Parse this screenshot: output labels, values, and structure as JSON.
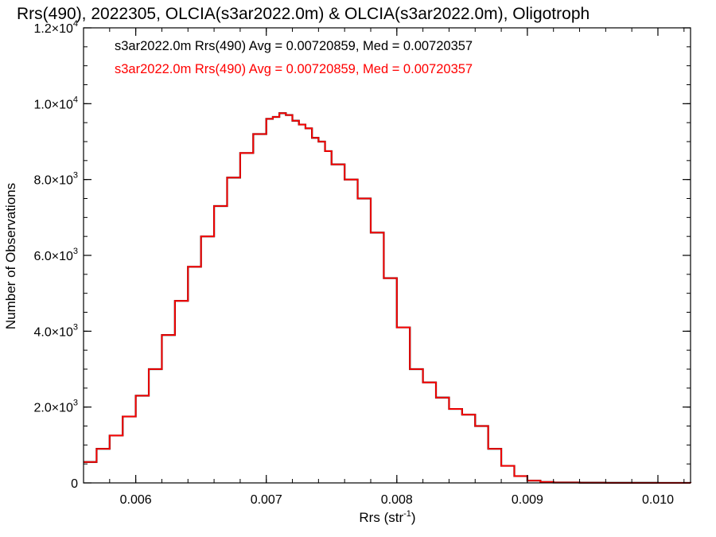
{
  "chart_data": {
    "type": "line",
    "title": "Rrs(490), 2022305, OLCIA(s3ar2022.0m) & OLCIA(s3ar2022.0m), Oligotroph",
    "xlabel": "Rrs (str",
    "xlabel_sup": "-1",
    "xlabel_end": ")",
    "ylabel": "Number of Observations",
    "xlim": [
      0.0056,
      0.01025
    ],
    "ylim": [
      0,
      12000
    ],
    "x_ticks": [
      0.006,
      0.007,
      0.008,
      0.009,
      0.01
    ],
    "x_tick_labels": [
      "0.006",
      "0.007",
      "0.008",
      "0.009",
      "0.010"
    ],
    "y_ticks": [
      0,
      2000,
      4000,
      6000,
      8000,
      10000,
      12000
    ],
    "y_tick_labels": [
      {
        "mant": "0",
        "exp": ""
      },
      {
        "mant": "2.0×10",
        "exp": "3"
      },
      {
        "mant": "4.0×10",
        "exp": "3"
      },
      {
        "mant": "6.0×10",
        "exp": "3"
      },
      {
        "mant": "8.0×10",
        "exp": "3"
      },
      {
        "mant": "1.0×10",
        "exp": "4"
      },
      {
        "mant": "1.2×10",
        "exp": "4"
      }
    ],
    "grid": false,
    "legend_position": "top-left",
    "series": [
      {
        "name": "s3ar2022.0m Rrs(490) Avg = 0.00720859, Med = 0.00720357",
        "color": "#000000",
        "x": [
          0.0056,
          0.0057,
          0.0058,
          0.0059,
          0.006,
          0.0061,
          0.0062,
          0.0063,
          0.0064,
          0.0065,
          0.0066,
          0.0067,
          0.0068,
          0.0069,
          0.007,
          0.00705,
          0.0071,
          0.00715,
          0.0072,
          0.00725,
          0.0073,
          0.00735,
          0.0074,
          0.00745,
          0.0075,
          0.0076,
          0.0077,
          0.0078,
          0.0079,
          0.008,
          0.0081,
          0.0082,
          0.0083,
          0.0084,
          0.0085,
          0.0086,
          0.0087,
          0.0088,
          0.0089,
          0.009,
          0.0091,
          0.0092,
          0.0094,
          0.0096,
          0.0098,
          0.01,
          0.01025
        ],
        "y": [
          550,
          900,
          1250,
          1750,
          2300,
          3000,
          3900,
          4800,
          5700,
          6500,
          7300,
          8050,
          8700,
          9200,
          9600,
          9650,
          9750,
          9700,
          9550,
          9450,
          9350,
          9100,
          9000,
          8750,
          8400,
          8000,
          7500,
          6600,
          5400,
          4100,
          3000,
          2650,
          2250,
          1950,
          1800,
          1500,
          900,
          450,
          180,
          60,
          25,
          10,
          5,
          3,
          2,
          1,
          0
        ]
      },
      {
        "name": "s3ar2022.0m Rrs(490) Avg = 0.00720859, Med = 0.00720357",
        "color": "#ff0000",
        "x": [
          0.0056,
          0.0057,
          0.0058,
          0.0059,
          0.006,
          0.0061,
          0.0062,
          0.0063,
          0.0064,
          0.0065,
          0.0066,
          0.0067,
          0.0068,
          0.0069,
          0.007,
          0.00705,
          0.0071,
          0.00715,
          0.0072,
          0.00725,
          0.0073,
          0.00735,
          0.0074,
          0.00745,
          0.0075,
          0.0076,
          0.0077,
          0.0078,
          0.0079,
          0.008,
          0.0081,
          0.0082,
          0.0083,
          0.0084,
          0.0085,
          0.0086,
          0.0087,
          0.0088,
          0.0089,
          0.009,
          0.0091,
          0.0092,
          0.0094,
          0.0096,
          0.0098,
          0.01,
          0.01025
        ],
        "y": [
          550,
          900,
          1250,
          1750,
          2300,
          3000,
          3900,
          4800,
          5700,
          6500,
          7300,
          8050,
          8700,
          9200,
          9600,
          9650,
          9750,
          9700,
          9550,
          9450,
          9350,
          9100,
          9000,
          8750,
          8400,
          8000,
          7500,
          6600,
          5400,
          4100,
          3000,
          2650,
          2250,
          1950,
          1800,
          1500,
          900,
          450,
          180,
          60,
          25,
          10,
          5,
          3,
          2,
          1,
          0
        ]
      }
    ]
  }
}
